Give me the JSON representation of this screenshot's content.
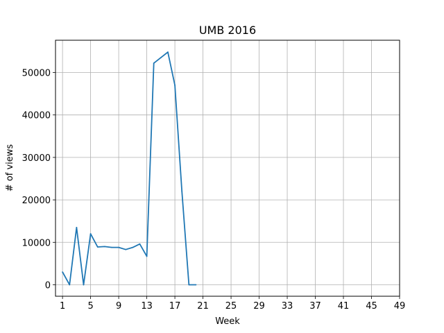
{
  "chart_data": {
    "type": "line",
    "title": "UMB 2016",
    "xlabel": "Week",
    "ylabel": "# of views",
    "xlim": [
      0,
      49
    ],
    "ylim": [
      -2700,
      57600
    ],
    "xticks": [
      1,
      5,
      9,
      13,
      17,
      21,
      25,
      29,
      33,
      37,
      41,
      45,
      49
    ],
    "yticks": [
      0,
      10000,
      20000,
      30000,
      40000,
      50000
    ],
    "grid": true,
    "series": [
      {
        "color": "#1f77b4",
        "x": [
          1,
          2,
          3,
          4,
          5,
          6,
          7,
          8,
          9,
          10,
          11,
          12,
          13,
          14,
          15,
          16,
          17,
          18,
          19,
          20
        ],
        "y": [
          3000,
          0,
          13500,
          0,
          12000,
          8900,
          9000,
          8800,
          8800,
          8300,
          8800,
          9600,
          6700,
          52200,
          53500,
          54800,
          47000,
          22000,
          0,
          0
        ]
      }
    ]
  }
}
